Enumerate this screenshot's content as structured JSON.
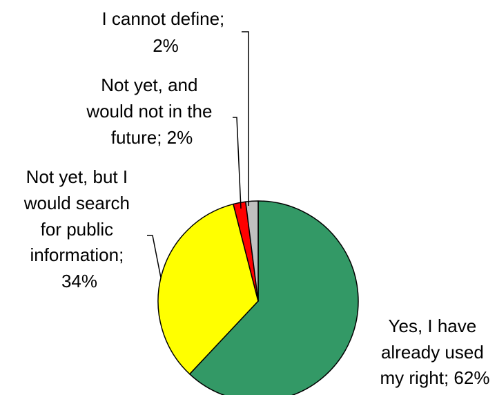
{
  "chart_data": {
    "type": "pie",
    "title": "",
    "slices": [
      {
        "label_lines": [
          "Yes, I have",
          "already used",
          "my right; 62%"
        ],
        "value": 62,
        "color": "#339966"
      },
      {
        "label_lines": [
          "Not yet, but I",
          "would search",
          "for public",
          "information;",
          "34%"
        ],
        "value": 34,
        "color": "#ffff00"
      },
      {
        "label_lines": [
          "Not yet, and",
          "would not in the",
          "future; 2%"
        ],
        "value": 2,
        "color": "#ff0000"
      },
      {
        "label_lines": [
          "I cannot define;",
          "2%"
        ],
        "value": 2,
        "color": "#c0c0c0"
      }
    ],
    "legend": "none",
    "start_angle": "12 o'clock, clockwise"
  }
}
